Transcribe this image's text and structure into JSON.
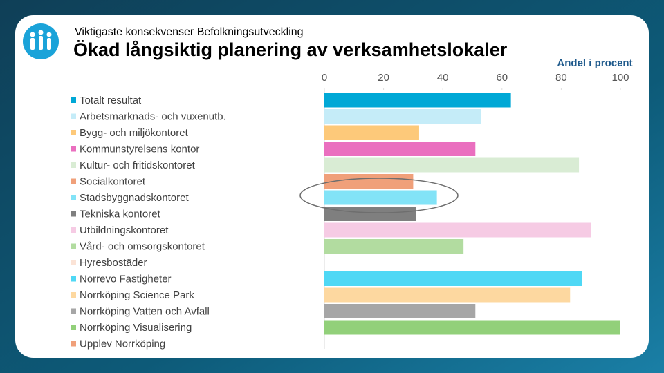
{
  "chart_data": {
    "type": "bar",
    "orientation": "horizontal",
    "subtitle": "Viktigaste konsekvenser Befolkningsutveckling",
    "title": "Ökad långsiktig planering av verksamhetslokaler",
    "x_label": "Andel i procent",
    "categories": [
      "Totalt resultat",
      "Arbetsmarknads- och vuxenutb.",
      "Bygg- och miljökontoret",
      "Kommunstyrelsens kontor",
      "Kultur- och fritidskontoret",
      "Socialkontoret",
      "Stadsbyggnadskontoret",
      "Tekniska kontoret",
      "Utbildningskontoret",
      "Vård- och omsorgskontoret",
      "Hyresbostäder",
      "Norrevo Fastigheter",
      "Norrköping Science Park",
      "Norrköping Vatten och Avfall",
      "Norrköping Visualisering",
      "Upplev Norrköping"
    ],
    "values": [
      63,
      53,
      32,
      51,
      86,
      30,
      38,
      31,
      90,
      47,
      null,
      87,
      83,
      51,
      100,
      null
    ],
    "colors": [
      "#00a8d6",
      "#c5ecf8",
      "#fdc97a",
      "#ea6fbf",
      "#d9ecd4",
      "#f0a07a",
      "#82e3f7",
      "#7f7f7f",
      "#f6cbe4",
      "#b2dca0",
      "#fbe3d6",
      "#4fd8f5",
      "#fdd8a0",
      "#a6a6a6",
      "#92d07a",
      "#f0a07a"
    ],
    "xlim": [
      0,
      100
    ],
    "xticks": [
      0,
      20,
      40,
      60,
      80,
      100
    ]
  }
}
